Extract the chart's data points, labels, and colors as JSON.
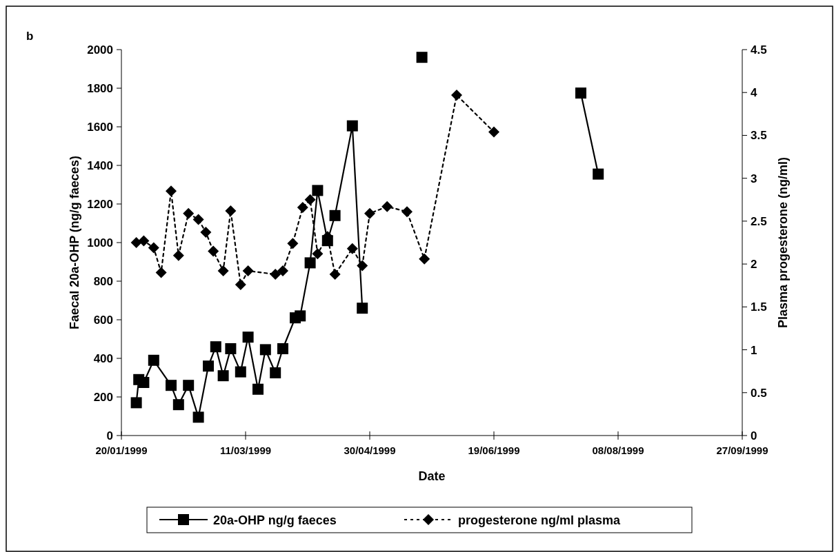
{
  "chart_data": {
    "type": "line",
    "xlabel": "Date",
    "ylabel": "Faecal 20a-OHP (ng/g faeces)",
    "y2label": "Plasma progesterone (ng/ml)",
    "annotations": [
      "b"
    ],
    "xlim": [
      "1999-01-20",
      "1999-09-27"
    ],
    "xticks": [
      {
        "value": "1999-01-20",
        "label": "20/01/1999"
      },
      {
        "value": "1999-03-11",
        "label": "11/03/1999"
      },
      {
        "value": "1999-04-30",
        "label": "30/04/1999"
      },
      {
        "value": "1999-06-19",
        "label": "19/06/1999"
      },
      {
        "value": "1999-08-08",
        "label": "08/08/1999"
      },
      {
        "value": "1999-09-27",
        "label": "27/09/1999"
      }
    ],
    "ylim": [
      0,
      2000
    ],
    "yticks": [
      0,
      200,
      400,
      600,
      800,
      1000,
      1200,
      1400,
      1600,
      1800,
      2000
    ],
    "y2lim": [
      0,
      4.5
    ],
    "y2ticks": [
      0,
      0.5,
      1,
      1.5,
      2,
      2.5,
      3,
      3.5,
      4,
      4.5
    ],
    "grid": false,
    "legend": "bottom",
    "series": [
      {
        "name": "20a-OHP ng/g faeces",
        "color": "#000000",
        "marker": "square",
        "line_style": "solid",
        "x": [
          "1999-01-26",
          "1999-01-27",
          "1999-01-29",
          "1999-02-02",
          "1999-02-09",
          "1999-02-12",
          "1999-02-16",
          "1999-02-20",
          "1999-02-24",
          "1999-02-27",
          "1999-03-02",
          "1999-03-05",
          "1999-03-09",
          "1999-03-12",
          "1999-03-16",
          "1999-03-19",
          "1999-03-23",
          "1999-03-26",
          "1999-03-31",
          "1999-04-02",
          "1999-04-06",
          "1999-04-09",
          "1999-04-13",
          "1999-04-16",
          "1999-04-23",
          "1999-04-27",
          "1999-05-10",
          "1999-05-21",
          "1999-06-25",
          "1999-07-24",
          "1999-07-31"
        ],
        "values": [
          170,
          290,
          275,
          390,
          260,
          160,
          260,
          95,
          360,
          460,
          310,
          450,
          330,
          510,
          240,
          445,
          325,
          450,
          610,
          620,
          895,
          1270,
          1010,
          1140,
          1605,
          660,
          null,
          1960,
          null,
          1775,
          1355
        ]
      },
      {
        "name": "progesterone ng/ml plasma",
        "color": "#000000",
        "marker": "diamond",
        "line_style": "dotted",
        "axis": "y2",
        "x": [
          "1999-01-26",
          "1999-01-29",
          "1999-02-02",
          "1999-02-05",
          "1999-02-09",
          "1999-02-12",
          "1999-02-16",
          "1999-02-20",
          "1999-02-23",
          "1999-02-26",
          "1999-03-02",
          "1999-03-05",
          "1999-03-09",
          "1999-03-12",
          "1999-03-23",
          "1999-03-26",
          "1999-03-30",
          "1999-04-03",
          "1999-04-06",
          "1999-04-09",
          "1999-04-13",
          "1999-04-16",
          "1999-04-23",
          "1999-04-27",
          "1999-04-30",
          "1999-05-07",
          "1999-05-15",
          "1999-05-22",
          "1999-06-04",
          "1999-06-19"
        ],
        "values": [
          2.25,
          2.27,
          2.19,
          1.9,
          2.85,
          2.1,
          2.59,
          2.52,
          2.37,
          2.15,
          1.92,
          2.62,
          1.76,
          1.92,
          1.88,
          1.92,
          2.24,
          2.66,
          2.75,
          2.12,
          2.32,
          1.88,
          2.18,
          1.98,
          2.59,
          2.67,
          2.61,
          2.06,
          3.97,
          3.54
        ]
      }
    ]
  }
}
